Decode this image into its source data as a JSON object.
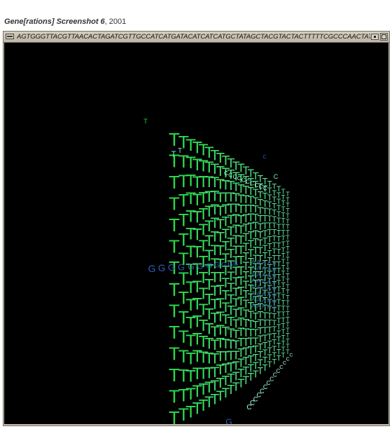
{
  "caption": {
    "title": "Gene[rations] Screenshot 6",
    "separator": ", ",
    "year": "2001"
  },
  "window": {
    "title": "AGTGGGTTACGTTAACACTAGATCGTTGCCATCATGATACATCATCATGCTATAGCTACGTACTACTTTTTCGCCCAACTATGCTACGTACAC",
    "menu_icon": "window-menu-icon",
    "minimize_icon": "minimize-icon",
    "maximize_icon": "maximize-icon"
  },
  "scene": {
    "grid_letter": "T",
    "row_letter": "G",
    "cluster_letter": "A",
    "tail_letter": "C",
    "colors": {
      "background": "#000000",
      "t_near": "#2ad84a",
      "t_far": "#7cf0c6",
      "g_row": "#2e5fb8",
      "a_cluster": "#3a63b0",
      "c_letters": "#a8ffe0"
    }
  }
}
